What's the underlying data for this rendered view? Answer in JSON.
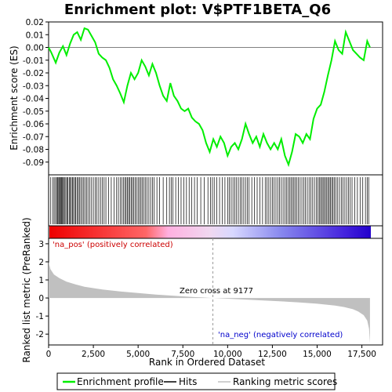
{
  "chart_data": {
    "type": "line",
    "title": "Enrichment plot: V$PTF1BETA_Q6",
    "xlabel": "Rank in Ordered Dataset",
    "top_ylabel": "Enrichment score (ES)",
    "bottom_ylabel": "Ranked list metric (PreRanked)",
    "xlim": [
      0,
      18000
    ],
    "x_ticks": [
      0,
      2500,
      5000,
      7500,
      10000,
      12500,
      15000,
      17500
    ],
    "x_tick_labels": [
      "0",
      "2,500",
      "5,000",
      "7,500",
      "10,000",
      "12,500",
      "15,000",
      "17,500"
    ],
    "es_ylim": [
      -0.1,
      0.02
    ],
    "es_ticks": [
      0.02,
      0.01,
      0.0,
      -0.01,
      -0.02,
      -0.03,
      -0.04,
      -0.05,
      -0.06,
      -0.07,
      -0.08,
      -0.09
    ],
    "es_tick_labels": [
      "0.02",
      "0.01",
      "0.00",
      "-0.01",
      "-0.02",
      "-0.03",
      "-0.04",
      "-0.05",
      "-0.06",
      "-0.07",
      "-0.08",
      "-0.09"
    ],
    "metric_ylim": [
      -2.6,
      3.3
    ],
    "metric_ticks": [
      3,
      2,
      1,
      0,
      -1,
      -2
    ],
    "metric_tick_labels": [
      "3",
      "2",
      "1",
      "0",
      "-1",
      "-2"
    ],
    "enrichment_profile": {
      "x": [
        0,
        150,
        400,
        600,
        800,
        1000,
        1200,
        1400,
        1600,
        1800,
        2000,
        2200,
        2400,
        2600,
        2800,
        3000,
        3200,
        3400,
        3600,
        3800,
        4000,
        4200,
        4400,
        4600,
        4800,
        5000,
        5200,
        5400,
        5600,
        5800,
        6000,
        6200,
        6400,
        6600,
        6800,
        7000,
        7200,
        7400,
        7600,
        7800,
        8000,
        8200,
        8400,
        8600,
        8800,
        9000,
        9200,
        9400,
        9600,
        9800,
        10000,
        10200,
        10400,
        10600,
        10800,
        11000,
        11200,
        11400,
        11600,
        11800,
        12000,
        12200,
        12400,
        12600,
        12800,
        13000,
        13200,
        13400,
        13600,
        13800,
        14000,
        14200,
        14400,
        14600,
        14800,
        15000,
        15200,
        15400,
        15600,
        15800,
        16000,
        16200,
        16400,
        16600,
        16800,
        17000,
        17200,
        17400,
        17600,
        17800,
        17950
      ],
      "y": [
        0.0,
        -0.004,
        -0.012,
        -0.004,
        0.001,
        -0.006,
        0.003,
        0.01,
        0.012,
        0.006,
        0.015,
        0.014,
        0.009,
        0.004,
        -0.005,
        -0.008,
        -0.01,
        -0.016,
        -0.025,
        -0.03,
        -0.036,
        -0.043,
        -0.03,
        -0.02,
        -0.025,
        -0.02,
        -0.01,
        -0.015,
        -0.022,
        -0.013,
        -0.02,
        -0.03,
        -0.038,
        -0.042,
        -0.028,
        -0.038,
        -0.042,
        -0.048,
        -0.05,
        -0.048,
        -0.055,
        -0.058,
        -0.06,
        -0.065,
        -0.075,
        -0.082,
        -0.072,
        -0.078,
        -0.07,
        -0.075,
        -0.085,
        -0.078,
        -0.075,
        -0.08,
        -0.072,
        -0.06,
        -0.068,
        -0.075,
        -0.07,
        -0.078,
        -0.068,
        -0.075,
        -0.08,
        -0.075,
        -0.08,
        -0.072,
        -0.085,
        -0.092,
        -0.082,
        -0.068,
        -0.07,
        -0.075,
        -0.068,
        -0.072,
        -0.056,
        -0.048,
        -0.045,
        -0.035,
        -0.022,
        -0.01,
        0.005,
        -0.002,
        -0.005,
        0.012,
        0.005,
        -0.002,
        -0.005,
        -0.008,
        -0.01,
        0.005,
        0.0
      ]
    },
    "hits": [
      120,
      230,
      310,
      390,
      450,
      510,
      560,
      610,
      650,
      700,
      740,
      790,
      830,
      900,
      960,
      1020,
      1080,
      1150,
      1210,
      1270,
      1330,
      1390,
      1460,
      1520,
      1590,
      1660,
      1720,
      1800,
      1880,
      1960,
      2040,
      2120,
      2200,
      2300,
      2400,
      2500,
      2600,
      2700,
      2800,
      2900,
      3000,
      3100,
      3200,
      3350,
      3500,
      3650,
      3800,
      3900,
      4000,
      4100,
      4180,
      4260,
      4330,
      4400,
      4470,
      4540,
      4610,
      4680,
      4750,
      4830,
      4910,
      5000,
      5080,
      5160,
      5240,
      5320,
      5400,
      5500,
      5600,
      5700,
      5800,
      5900,
      6050,
      6200,
      6400,
      6600,
      6750,
      6850,
      6950,
      7100,
      7250,
      7400,
      7550,
      7700,
      7850,
      8000,
      8150,
      8300,
      8500,
      8700,
      8900,
      9050,
      9150,
      9250,
      9400,
      9550,
      9700,
      9850,
      10000,
      10100,
      10200,
      10300,
      10400,
      10500,
      10600,
      10700,
      10800,
      10900,
      11000,
      11100,
      11200,
      11350,
      11500,
      11650,
      11800,
      11950,
      12100,
      12200,
      12300,
      12400,
      12500,
      12600,
      12700,
      12800,
      12900,
      13000,
      13100,
      13200,
      13300,
      13380,
      13460,
      13540,
      13620,
      13700,
      13780,
      13860,
      13950,
      14050,
      14150,
      14250,
      14350,
      14450,
      14550,
      14650,
      14750,
      14850,
      14950,
      15050,
      15120,
      15190,
      15260,
      15330,
      15400,
      15470,
      15540,
      15610,
      15680,
      15750,
      15820,
      15890,
      15960,
      16050,
      16150,
      16250,
      16350,
      16450,
      16550,
      16650,
      16750,
      16850,
      16950,
      17100,
      17250,
      17400,
      17550,
      17700,
      17800,
      17880
    ],
    "ranked_metric": {
      "x": [
        0,
        100,
        300,
        600,
        1000,
        1500,
        2000,
        3000,
        4000,
        5000,
        6000,
        7000,
        8000,
        9177,
        10000,
        11000,
        12000,
        13000,
        14000,
        15000,
        16000,
        16500,
        17000,
        17300,
        17600,
        17800,
        17900,
        17950
      ],
      "y": [
        2.0,
        1.6,
        1.3,
        1.1,
        0.9,
        0.75,
        0.62,
        0.47,
        0.36,
        0.27,
        0.19,
        0.12,
        0.06,
        0.0,
        -0.04,
        -0.09,
        -0.14,
        -0.19,
        -0.25,
        -0.32,
        -0.42,
        -0.5,
        -0.62,
        -0.75,
        -0.95,
        -1.25,
        -1.7,
        -2.5
      ]
    },
    "annotations": {
      "pos_label": "'na_pos' (positively correlated)",
      "neg_label": "'na_neg' (negatively correlated)",
      "zero_cross_label": "Zero cross at 9177",
      "zero_cross": 9177
    },
    "legend": {
      "items": [
        "Enrichment profile",
        "Hits",
        "Ranking metric scores"
      ],
      "placement": "bottom"
    },
    "colors": {
      "profile": "#00ee00",
      "hits": "#000000",
      "metric_fill": "#c0c0c0",
      "pos_label": "#cc0000",
      "neg_label": "#0000cc",
      "gradient_red": "#ee0000",
      "gradient_blue": "#2200cc"
    }
  }
}
